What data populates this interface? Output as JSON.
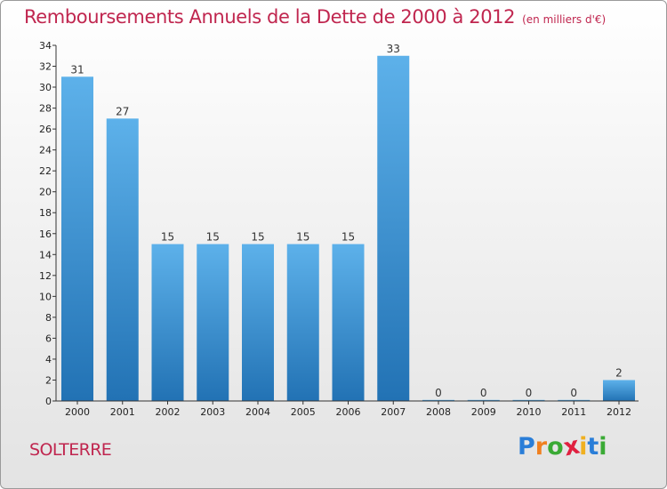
{
  "title": "Remboursements Annuels de la Dette de 2000 à 2012",
  "subtitle": "(en milliers d'€)",
  "location": "SOLTERRE",
  "brand": {
    "letters": [
      "P",
      "r",
      "o",
      "x",
      "i",
      "t",
      "i"
    ],
    "colors": [
      "#2a7ed8",
      "#f08020",
      "#3aaa35",
      "#e02040",
      "#f0b020",
      "#2a7ed8",
      "#3aaa35"
    ]
  },
  "colors": {
    "title": "#c0264f",
    "bar_top": "#5db1ea",
    "bar_bottom": "#2272b4",
    "axis": "#333333"
  },
  "chart_data": {
    "type": "bar",
    "title": "Remboursements Annuels de la Dette de 2000 à 2012",
    "subtitle": "(en milliers d'€)",
    "xlabel": "",
    "ylabel": "",
    "categories": [
      "2000",
      "2001",
      "2002",
      "2003",
      "2004",
      "2005",
      "2006",
      "2007",
      "2008",
      "2009",
      "2010",
      "2011",
      "2012"
    ],
    "values": [
      31,
      27,
      15,
      15,
      15,
      15,
      15,
      33,
      0,
      0,
      0,
      0,
      2
    ],
    "data_labels": [
      "31",
      "27",
      "15",
      "15",
      "15",
      "15",
      "15",
      "33",
      "0",
      "0",
      "0",
      "0",
      "2"
    ],
    "ylim": [
      0,
      34
    ],
    "yticks": [
      "0",
      "2",
      "4",
      "6",
      "8",
      "10",
      "12",
      "14",
      "16",
      "18",
      "20",
      "22",
      "24",
      "26",
      "28",
      "30",
      "32",
      "34"
    ],
    "grid": false,
    "legend": "none"
  }
}
